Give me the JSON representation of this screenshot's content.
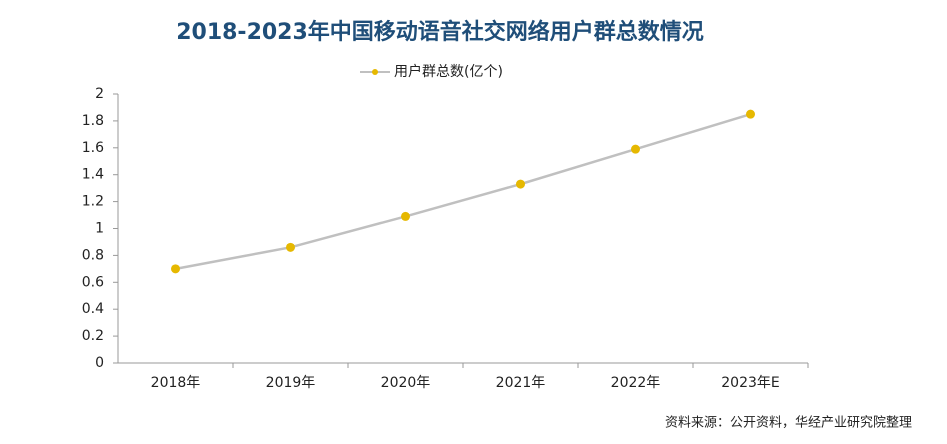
{
  "chart_data": {
    "type": "line",
    "title": "2018-2023年中国移动语音社交网络用户群总数情况",
    "categories": [
      "2018年",
      "2019年",
      "2020年",
      "2021年",
      "2022年",
      "2023年E"
    ],
    "series": [
      {
        "name": "用户群总数(亿个)",
        "color": "#e6b800",
        "line_color": "#c0c0c0",
        "values": [
          0.7,
          0.86,
          1.09,
          1.33,
          1.59,
          1.85
        ]
      }
    ],
    "ylim": [
      0,
      2
    ],
    "yticks": [
      0,
      0.2,
      0.4,
      0.6,
      0.8,
      1,
      1.2,
      1.4,
      1.6,
      1.8,
      2
    ],
    "grid": false,
    "source": "资料来源：公开资料，华经产业研究院整理"
  }
}
